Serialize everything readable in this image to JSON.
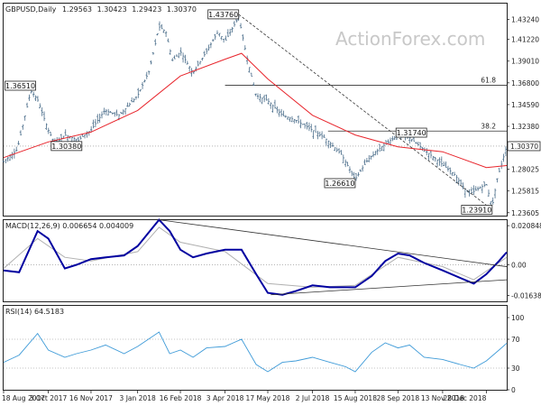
{
  "chart_data": [
    {
      "type": "line",
      "panel": "price",
      "title": "GBPUSD,Daily",
      "ohlc": {
        "open": "1.29563",
        "high": "1.30423",
        "low": "1.29423",
        "close": "1.30370"
      },
      "ylim": [
        1.2331,
        1.4485
      ],
      "y_ticks": [
        "1.43240",
        "1.41220",
        "1.39010",
        "1.36800",
        "1.34590",
        "1.32380",
        "1.30370",
        "1.28025",
        "1.25815",
        "1.23605"
      ],
      "y_tick_values": [
        1.4324,
        1.4122,
        1.3901,
        1.368,
        1.3459,
        1.3238,
        1.3037,
        1.28025,
        1.25815,
        1.23605
      ],
      "current_price": {
        "label": "1.30370",
        "value": 1.3037
      },
      "x_dates": [
        "18 Aug 2017",
        "3 Oct 2017",
        "16 Nov 2017",
        "3 Jan 2018",
        "16 Feb 2018",
        "3 Apr 2018",
        "17 May 2018",
        "2 Jul 2018",
        "15 Aug 2018",
        "28 Sep 2018",
        "13 Nov 2018",
        "28 Dec 2018"
      ],
      "close_points": [
        [
          "18 Aug 2017",
          1.288
        ],
        [
          "1 Sep 2017",
          1.3
        ],
        [
          "15 Sep 2017",
          1.36
        ],
        [
          "22 Sep 2017",
          1.351
        ],
        [
          "3 Oct 2017",
          1.32
        ],
        [
          "10 Oct 2017",
          1.306
        ],
        [
          "20 Oct 2017",
          1.315
        ],
        [
          "3 Nov 2017",
          1.31
        ],
        [
          "16 Nov 2017",
          1.32
        ],
        [
          "30 Nov 2017",
          1.34
        ],
        [
          "15 Dec 2017",
          1.335
        ],
        [
          "3 Jan 2018",
          1.355
        ],
        [
          "15 Jan 2018",
          1.38
        ],
        [
          "25 Jan 2018",
          1.425
        ],
        [
          "1 Feb 2018",
          1.42
        ],
        [
          "8 Feb 2018",
          1.39
        ],
        [
          "16 Feb 2018",
          1.4
        ],
        [
          "1 Mar 2018",
          1.378
        ],
        [
          "15 Mar 2018",
          1.4
        ],
        [
          "27 Mar 2018",
          1.42
        ],
        [
          "3 Apr 2018",
          1.41
        ],
        [
          "17 Apr 2018",
          1.435
        ],
        [
          "25 Apr 2018",
          1.396
        ],
        [
          "5 May 2018",
          1.355
        ],
        [
          "17 May 2018",
          1.35
        ],
        [
          "1 Jun 2018",
          1.335
        ],
        [
          "15 Jun 2018",
          1.33
        ],
        [
          "2 Jul 2018",
          1.32
        ],
        [
          "15 Jul 2018",
          1.312
        ],
        [
          "1 Aug 2018",
          1.295
        ],
        [
          "15 Aug 2018",
          1.27
        ],
        [
          "28 Aug 2018",
          1.29
        ],
        [
          "10 Sep 2018",
          1.302
        ],
        [
          "28 Sep 2018",
          1.315
        ],
        [
          "10 Oct 2018",
          1.312
        ],
        [
          "25 Oct 2018",
          1.3
        ],
        [
          "13 Nov 2018",
          1.285
        ],
        [
          "25 Nov 2018",
          1.275
        ],
        [
          "10 Dec 2018",
          1.255
        ],
        [
          "28 Dec 2018",
          1.265
        ],
        [
          "3 Jan 2019",
          1.242
        ],
        [
          "8 Jan 2019",
          1.27
        ],
        [
          "14 Jan 2019",
          1.29
        ],
        [
          "18 Jan 2019",
          1.304
        ]
      ],
      "ma_points": [
        [
          "18 Aug 2017",
          1.292
        ],
        [
          "3 Oct 2017",
          1.308
        ],
        [
          "16 Nov 2017",
          1.318
        ],
        [
          "3 Jan 2018",
          1.34
        ],
        [
          "16 Feb 2018",
          1.375
        ],
        [
          "3 Apr 2018",
          1.392
        ],
        [
          "20 Apr 2018",
          1.398
        ],
        [
          "17 May 2018",
          1.372
        ],
        [
          "2 Jul 2018",
          1.335
        ],
        [
          "15 Aug 2018",
          1.315
        ],
        [
          "28 Sep 2018",
          1.303
        ],
        [
          "13 Nov 2018",
          1.298
        ],
        [
          "28 Dec 2018",
          1.282
        ],
        [
          "18 Jan 2019",
          1.284
        ]
      ],
      "horizontal_levels": [
        {
          "label": "61.8",
          "value": 1.3655,
          "from": "3 Apr 2018"
        },
        {
          "label": "38.2",
          "value": 1.319,
          "from": "18 Jul 2018"
        }
      ],
      "trendlines": [
        {
          "from": [
            "17 Apr 2018",
            1.4376
          ],
          "to": [
            "3 Jan 2019",
            1.2391
          ]
        }
      ],
      "annotations": [
        {
          "label": "1.43760",
          "date": "17 Apr 2018",
          "value": 1.4376,
          "side": "left"
        },
        {
          "label": "1.36510",
          "date": "20 Sep 2017",
          "value": 1.3651,
          "side": "left"
        },
        {
          "label": "1.30380",
          "date": "6 Oct 2017",
          "value": 1.3038,
          "side": "right"
        },
        {
          "label": "1.26610",
          "date": "15 Aug 2018",
          "value": 1.2661,
          "side": "left"
        },
        {
          "label": "1.31740",
          "date": "26 Sep 2018",
          "value": 1.3174,
          "side": "right"
        },
        {
          "label": "1.23910",
          "date": "3 Jan 2019",
          "value": 1.2391,
          "side": "left"
        }
      ],
      "watermark": "ActionForex.com"
    },
    {
      "type": "line",
      "panel": "macd",
      "title": "MACD(12,26,9) 0.006654 0.004009",
      "ylim": [
        -0.0195,
        0.0238
      ],
      "y_ticks": [
        "0.020848",
        "0.00",
        "-0.016389"
      ],
      "y_tick_values": [
        0.020848,
        0.0,
        -0.016389
      ],
      "macd_points": [
        [
          "18 Aug 2017",
          -0.003
        ],
        [
          "3 Sep 2017",
          -0.004
        ],
        [
          "22 Sep 2017",
          0.018
        ],
        [
          "3 Oct 2017",
          0.014
        ],
        [
          "20 Oct 2017",
          -0.002
        ],
        [
          "1 Nov 2017",
          0.0
        ],
        [
          "16 Nov 2017",
          0.003
        ],
        [
          "1 Dec 2017",
          0.004
        ],
        [
          "20 Dec 2017",
          0.005
        ],
        [
          "3 Jan 2018",
          0.01
        ],
        [
          "25 Jan 2018",
          0.024
        ],
        [
          "5 Feb 2018",
          0.018
        ],
        [
          "16 Feb 2018",
          0.008
        ],
        [
          "1 Mar 2018",
          0.004
        ],
        [
          "15 Mar 2018",
          0.006
        ],
        [
          "3 Apr 2018",
          0.008
        ],
        [
          "20 Apr 2018",
          0.008
        ],
        [
          "5 May 2018",
          -0.005
        ],
        [
          "17 May 2018",
          -0.015
        ],
        [
          "1 Jun 2018",
          -0.016
        ],
        [
          "15 Jun 2018",
          -0.014
        ],
        [
          "2 Jul 2018",
          -0.011
        ],
        [
          "20 Jul 2018",
          -0.012
        ],
        [
          "5 Aug 2018",
          -0.012
        ],
        [
          "15 Aug 2018",
          -0.012
        ],
        [
          "1 Sep 2018",
          -0.006
        ],
        [
          "15 Sep 2018",
          0.002
        ],
        [
          "28 Sep 2018",
          0.006
        ],
        [
          "10 Oct 2018",
          0.005
        ],
        [
          "25 Oct 2018",
          0.001
        ],
        [
          "13 Nov 2018",
          -0.003
        ],
        [
          "1 Dec 2018",
          -0.007
        ],
        [
          "15 Dec 2018",
          -0.01
        ],
        [
          "28 Dec 2018",
          -0.005
        ],
        [
          "10 Jan 2019",
          0.002
        ],
        [
          "18 Jan 2019",
          0.0067
        ]
      ],
      "signal_points": [
        [
          "18 Aug 2017",
          -0.002
        ],
        [
          "22 Sep 2017",
          0.014
        ],
        [
          "20 Oct 2017",
          0.004
        ],
        [
          "16 Nov 2017",
          0.002
        ],
        [
          "3 Jan 2018",
          0.007
        ],
        [
          "25 Jan 2018",
          0.02
        ],
        [
          "16 Feb 2018",
          0.012
        ],
        [
          "3 Apr 2018",
          0.007
        ],
        [
          "17 May 2018",
          -0.01
        ],
        [
          "2 Jul 2018",
          -0.012
        ],
        [
          "15 Aug 2018",
          -0.011
        ],
        [
          "28 Sep 2018",
          0.004
        ],
        [
          "13 Nov 2018",
          -0.001
        ],
        [
          "15 Dec 2018",
          -0.008
        ],
        [
          "18 Jan 2019",
          0.004
        ]
      ],
      "trendlines": [
        {
          "from": [
            "25 Jan 2018",
            0.024
          ],
          "to": [
            "18 Jan 2019",
            -0.001
          ]
        },
        {
          "from": [
            "20 May 2018",
            -0.016
          ],
          "to": [
            "18 Jan 2019",
            -0.008
          ]
        }
      ]
    },
    {
      "type": "line",
      "panel": "rsi",
      "title": "RSI(14) 64.5183",
      "ylim": [
        0,
        100
      ],
      "y_ticks": [
        "100",
        "70",
        "30",
        "0"
      ],
      "y_tick_values": [
        100,
        70,
        30,
        0
      ],
      "levels": [
        70,
        30
      ],
      "rsi_points": [
        [
          "18 Aug 2017",
          38
        ],
        [
          "3 Sep 2017",
          48
        ],
        [
          "22 Sep 2017",
          78
        ],
        [
          "3 Oct 2017",
          55
        ],
        [
          "20 Oct 2017",
          45
        ],
        [
          "1 Nov 2017",
          50
        ],
        [
          "16 Nov 2017",
          55
        ],
        [
          "1 Dec 2017",
          62
        ],
        [
          "20 Dec 2017",
          50
        ],
        [
          "3 Jan 2018",
          60
        ],
        [
          "25 Jan 2018",
          80
        ],
        [
          "5 Feb 2018",
          50
        ],
        [
          "16 Feb 2018",
          55
        ],
        [
          "1 Mar 2018",
          45
        ],
        [
          "15 Mar 2018",
          58
        ],
        [
          "3 Apr 2018",
          60
        ],
        [
          "20 Apr 2018",
          70
        ],
        [
          "5 May 2018",
          35
        ],
        [
          "17 May 2018",
          25
        ],
        [
          "1 Jun 2018",
          38
        ],
        [
          "15 Jun 2018",
          40
        ],
        [
          "2 Jul 2018",
          45
        ],
        [
          "20 Jul 2018",
          38
        ],
        [
          "5 Aug 2018",
          32
        ],
        [
          "15 Aug 2018",
          25
        ],
        [
          "1 Sep 2018",
          52
        ],
        [
          "15 Sep 2018",
          65
        ],
        [
          "28 Sep 2018",
          58
        ],
        [
          "10 Oct 2018",
          62
        ],
        [
          "25 Oct 2018",
          45
        ],
        [
          "13 Nov 2018",
          42
        ],
        [
          "1 Dec 2018",
          35
        ],
        [
          "15 Dec 2018",
          30
        ],
        [
          "28 Dec 2018",
          40
        ],
        [
          "10 Jan 2019",
          55
        ],
        [
          "18 Jan 2019",
          64.5
        ]
      ]
    }
  ],
  "colors": {
    "candle": "#4a6d8a",
    "ma": "#e8252c",
    "macd": "#0000a0",
    "signal": "#b0b0b0",
    "rsi": "#3f9bd8",
    "guide": "#333333",
    "grid": "#888888"
  }
}
